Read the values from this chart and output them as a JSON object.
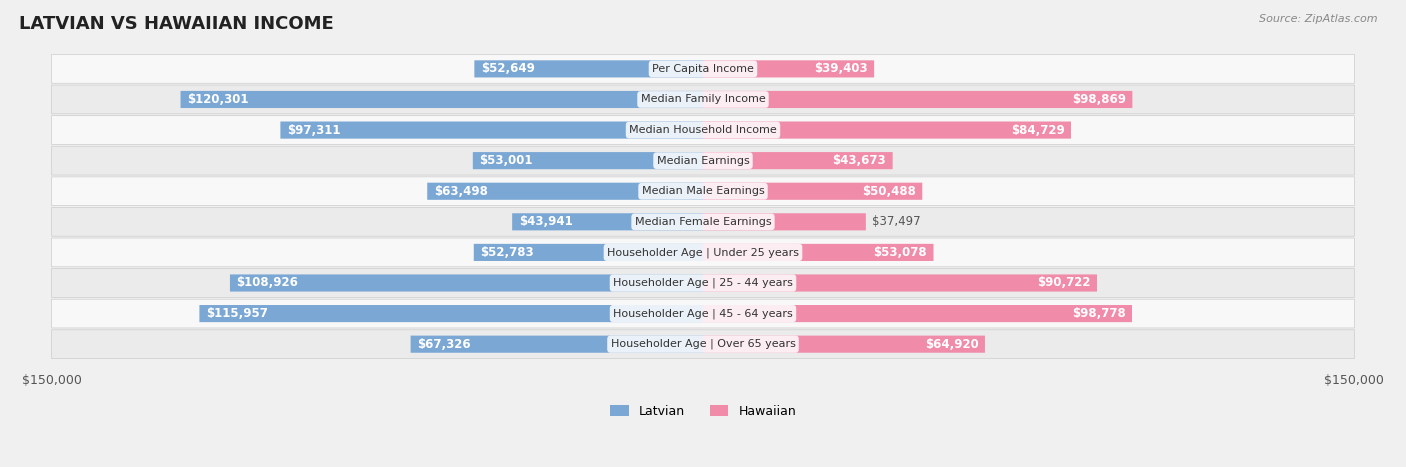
{
  "title": "LATVIAN VS HAWAIIAN INCOME",
  "source": "Source: ZipAtlas.com",
  "categories": [
    "Per Capita Income",
    "Median Family Income",
    "Median Household Income",
    "Median Earnings",
    "Median Male Earnings",
    "Median Female Earnings",
    "Householder Age | Under 25 years",
    "Householder Age | 25 - 44 years",
    "Householder Age | 45 - 64 years",
    "Householder Age | Over 65 years"
  ],
  "latvian_values": [
    52649,
    120301,
    97311,
    53001,
    63498,
    43941,
    52783,
    108926,
    115957,
    67326
  ],
  "hawaiian_values": [
    39403,
    98869,
    84729,
    43673,
    50488,
    37497,
    53078,
    90722,
    98778,
    64920
  ],
  "latvian_labels": [
    "$52,649",
    "$120,301",
    "$97,311",
    "$53,001",
    "$63,498",
    "$43,941",
    "$52,783",
    "$108,926",
    "$115,957",
    "$67,326"
  ],
  "hawaiian_labels": [
    "$39,403",
    "$98,869",
    "$84,729",
    "$43,673",
    "$50,488",
    "$37,497",
    "$53,078",
    "$90,722",
    "$98,778",
    "$64,920"
  ],
  "latvian_color_bar": "#7ba7d4",
  "hawaiian_color_bar": "#f08baa",
  "latvian_color_dark": "#5b87c4",
  "hawaiian_color_dark": "#e06b8a",
  "max_val": 150000,
  "bg_color": "#f0f0f0",
  "row_bg_light": "#f8f8f8",
  "row_bg_dark": "#ebebeb",
  "label_font_size": 8.5,
  "category_font_size": 8,
  "title_font_size": 13,
  "legend_latvian": "Latvian",
  "legend_hawaiian": "Hawaiian"
}
